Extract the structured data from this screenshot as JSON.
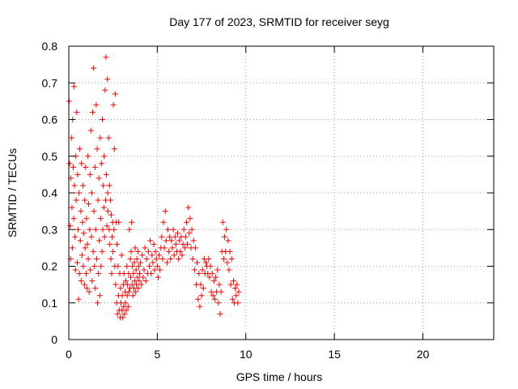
{
  "chart_data": {
    "type": "scatter",
    "title": "Day 177 of 2023, SRMTID for receiver seyg",
    "xlabel": "GPS time / hours",
    "ylabel": "SRMTID / TECUs",
    "xlim": [
      0,
      24
    ],
    "ylim": [
      0,
      0.8
    ],
    "xticks": [
      0,
      5,
      10,
      15,
      20
    ],
    "yticks": [
      0,
      0.1,
      0.2,
      0.3,
      0.4,
      0.5,
      0.6,
      0.7,
      0.8
    ],
    "grid": true,
    "marker": "+",
    "series": [
      {
        "name": "SRMTID",
        "color": "#ff0000",
        "points": [
          [
            0.02,
            0.65
          ],
          [
            0.05,
            0.48
          ],
          [
            0.08,
            0.31
          ],
          [
            0.1,
            0.22
          ],
          [
            0.12,
            0.44
          ],
          [
            0.15,
            0.55
          ],
          [
            0.18,
            0.36
          ],
          [
            0.2,
            0.25
          ],
          [
            0.22,
            0.6
          ],
          [
            0.25,
            0.47
          ],
          [
            0.28,
            0.33
          ],
          [
            0.3,
            0.69
          ],
          [
            0.32,
            0.42
          ],
          [
            0.35,
            0.28
          ],
          [
            0.38,
            0.19
          ],
          [
            0.4,
            0.5
          ],
          [
            0.42,
            0.38
          ],
          [
            0.45,
            0.62
          ],
          [
            0.48,
            0.21
          ],
          [
            0.5,
            0.45
          ],
          [
            0.52,
            0.3
          ],
          [
            0.55,
            0.11
          ],
          [
            0.58,
            0.4
          ],
          [
            0.6,
            0.18
          ],
          [
            0.62,
            0.52
          ],
          [
            0.65,
            0.27
          ],
          [
            0.68,
            0.35
          ],
          [
            0.7,
            0.16
          ],
          [
            0.72,
            0.48
          ],
          [
            0.75,
            0.23
          ],
          [
            0.78,
            0.32
          ],
          [
            0.8,
            0.42
          ],
          [
            0.82,
            0.2
          ],
          [
            0.85,
            0.29
          ],
          [
            0.88,
            0.15
          ],
          [
            0.9,
            0.38
          ],
          [
            0.92,
            0.25
          ],
          [
            0.95,
            0.47
          ],
          [
            0.98,
            0.18
          ],
          [
            1.0,
            0.33
          ],
          [
            1.02,
            0.14
          ],
          [
            1.05,
            0.26
          ],
          [
            1.08,
            0.5
          ],
          [
            1.1,
            0.22
          ],
          [
            1.12,
            0.37
          ],
          [
            1.15,
            0.13
          ],
          [
            1.18,
            0.3
          ],
          [
            1.2,
            0.45
          ],
          [
            1.22,
            0.19
          ],
          [
            1.25,
            0.57
          ],
          [
            1.28,
            0.28
          ],
          [
            1.3,
            0.4
          ],
          [
            1.32,
            0.16
          ],
          [
            1.35,
            0.62
          ],
          [
            1.38,
            0.24
          ],
          [
            1.4,
            0.74
          ],
          [
            1.42,
            0.35
          ],
          [
            1.45,
            0.2
          ],
          [
            1.48,
            0.47
          ],
          [
            1.5,
            0.14
          ],
          [
            1.52,
            0.3
          ],
          [
            1.55,
            0.64
          ],
          [
            1.58,
            0.22
          ],
          [
            1.6,
            0.52
          ],
          [
            1.62,
            0.1
          ],
          [
            1.65,
            0.38
          ],
          [
            1.68,
            0.18
          ],
          [
            1.7,
            0.44
          ],
          [
            1.72,
            0.27
          ],
          [
            1.75,
            0.12
          ],
          [
            1.78,
            0.55
          ],
          [
            1.8,
            0.33
          ],
          [
            1.82,
            0.2
          ],
          [
            1.85,
            0.48
          ],
          [
            1.88,
            0.24
          ],
          [
            1.9,
            0.6
          ],
          [
            1.92,
            0.3
          ],
          [
            1.95,
            0.42
          ],
          [
            1.98,
            0.36
          ],
          [
            2.0,
            0.5
          ],
          [
            2.02,
            0.28
          ],
          [
            2.05,
            0.68
          ],
          [
            2.08,
            0.38
          ],
          [
            2.1,
            0.77
          ],
          [
            2.12,
            0.45
          ],
          [
            2.15,
            0.31
          ],
          [
            2.18,
            0.71
          ],
          [
            2.2,
            0.4
          ],
          [
            2.22,
            0.35
          ],
          [
            2.25,
            0.55
          ],
          [
            2.28,
            0.3
          ],
          [
            2.3,
            0.42
          ],
          [
            2.32,
            0.26
          ],
          [
            2.35,
            0.38
          ],
          [
            2.38,
            0.22
          ],
          [
            2.4,
            0.34
          ],
          [
            2.42,
            0.18
          ],
          [
            2.45,
            0.28
          ],
          [
            2.48,
            0.32
          ],
          [
            2.5,
            0.24
          ],
          [
            2.52,
            0.64
          ],
          [
            2.55,
            0.3
          ],
          [
            2.58,
            0.52
          ],
          [
            2.6,
            0.2
          ],
          [
            2.62,
            0.67
          ],
          [
            2.65,
            0.15
          ],
          [
            2.68,
            0.32
          ],
          [
            2.7,
            0.1
          ],
          [
            2.72,
            0.26
          ],
          [
            2.75,
            0.07
          ],
          [
            2.78,
            0.2
          ],
          [
            2.8,
            0.12
          ],
          [
            2.82,
            0.32
          ],
          [
            2.85,
            0.08
          ],
          [
            2.88,
            0.18
          ],
          [
            2.9,
            0.06
          ],
          [
            2.92,
            0.14
          ],
          [
            2.95,
            0.1
          ],
          [
            2.98,
            0.23
          ],
          [
            3.0,
            0.08
          ],
          [
            3.02,
            0.12
          ],
          [
            3.05,
            0.06
          ],
          [
            3.08,
            0.15
          ],
          [
            3.1,
            0.09
          ],
          [
            3.12,
            0.18
          ],
          [
            3.15,
            0.07
          ],
          [
            3.18,
            0.13
          ],
          [
            3.2,
            0.1
          ],
          [
            3.22,
            0.16
          ],
          [
            3.25,
            0.08
          ],
          [
            3.28,
            0.2
          ],
          [
            3.3,
            0.12
          ],
          [
            3.32,
            0.15
          ],
          [
            3.35,
            0.09
          ],
          [
            3.38,
            0.18
          ],
          [
            3.4,
            0.13
          ],
          [
            3.42,
            0.3
          ],
          [
            3.45,
            0.14
          ],
          [
            3.48,
            0.22
          ],
          [
            3.5,
            0.17
          ],
          [
            3.52,
            0.24
          ],
          [
            3.55,
            0.32
          ],
          [
            3.58,
            0.15
          ],
          [
            3.6,
            0.2
          ],
          [
            3.62,
            0.12
          ],
          [
            3.65,
            0.18
          ],
          [
            3.68,
            0.14
          ],
          [
            3.7,
            0.21
          ],
          [
            3.72,
            0.16
          ],
          [
            3.75,
            0.25
          ],
          [
            3.78,
            0.13
          ],
          [
            3.8,
            0.19
          ],
          [
            3.82,
            0.15
          ],
          [
            3.85,
            0.22
          ],
          [
            3.88,
            0.17
          ],
          [
            3.9,
            0.24
          ],
          [
            3.92,
            0.14
          ],
          [
            3.95,
            0.2
          ],
          [
            3.98,
            0.16
          ],
          [
            4.0,
            0.18
          ],
          [
            4.05,
            0.21
          ],
          [
            4.1,
            0.15
          ],
          [
            4.15,
            0.23
          ],
          [
            4.2,
            0.17
          ],
          [
            4.25,
            0.19
          ],
          [
            4.3,
            0.25
          ],
          [
            4.35,
            0.16
          ],
          [
            4.4,
            0.22
          ],
          [
            4.45,
            0.18
          ],
          [
            4.5,
            0.24
          ],
          [
            4.55,
            0.2
          ],
          [
            4.6,
            0.27
          ],
          [
            4.65,
            0.18
          ],
          [
            4.7,
            0.23
          ],
          [
            4.75,
            0.21
          ],
          [
            4.8,
            0.26
          ],
          [
            4.85,
            0.19
          ],
          [
            4.9,
            0.24
          ],
          [
            4.95,
            0.22
          ],
          [
            5.0,
            0.2
          ],
          [
            5.05,
            0.17
          ],
          [
            5.1,
            0.23
          ],
          [
            5.15,
            0.19
          ],
          [
            5.2,
            0.25
          ],
          [
            5.25,
            0.28
          ],
          [
            5.3,
            0.22
          ],
          [
            5.35,
            0.32
          ],
          [
            5.4,
            0.25
          ],
          [
            5.45,
            0.35
          ],
          [
            5.5,
            0.27
          ],
          [
            5.55,
            0.21
          ],
          [
            5.6,
            0.3
          ],
          [
            5.65,
            0.24
          ],
          [
            5.7,
            0.28
          ],
          [
            5.75,
            0.22
          ],
          [
            5.8,
            0.27
          ],
          [
            5.85,
            0.25
          ],
          [
            5.9,
            0.3
          ],
          [
            5.95,
            0.23
          ],
          [
            6.0,
            0.28
          ],
          [
            6.05,
            0.26
          ],
          [
            6.1,
            0.24
          ],
          [
            6.15,
            0.29
          ],
          [
            6.2,
            0.22
          ],
          [
            6.25,
            0.27
          ],
          [
            6.3,
            0.24
          ],
          [
            6.35,
            0.28
          ],
          [
            6.4,
            0.23
          ],
          [
            6.45,
            0.26
          ],
          [
            6.5,
            0.3
          ],
          [
            6.55,
            0.25
          ],
          [
            6.6,
            0.28
          ],
          [
            6.65,
            0.32
          ],
          [
            6.7,
            0.26
          ],
          [
            6.75,
            0.36
          ],
          [
            6.8,
            0.29
          ],
          [
            6.85,
            0.33
          ],
          [
            6.9,
            0.25
          ],
          [
            6.95,
            0.3
          ],
          [
            7.0,
            0.22
          ],
          [
            7.05,
            0.27
          ],
          [
            7.1,
            0.19
          ],
          [
            7.15,
            0.25
          ],
          [
            7.2,
            0.15
          ],
          [
            7.25,
            0.21
          ],
          [
            7.3,
            0.11
          ],
          [
            7.35,
            0.18
          ],
          [
            7.4,
            0.09
          ],
          [
            7.45,
            0.15
          ],
          [
            7.5,
            0.12
          ],
          [
            7.55,
            0.19
          ],
          [
            7.6,
            0.14
          ],
          [
            7.65,
            0.22
          ],
          [
            7.7,
            0.18
          ],
          [
            7.75,
            0.21
          ],
          [
            7.8,
            0.2
          ],
          [
            7.85,
            0.18
          ],
          [
            7.9,
            0.22
          ],
          [
            7.95,
            0.17
          ],
          [
            8.0,
            0.2
          ],
          [
            8.05,
            0.13
          ],
          [
            8.1,
            0.18
          ],
          [
            8.15,
            0.12
          ],
          [
            8.2,
            0.16
          ],
          [
            8.25,
            0.11
          ],
          [
            8.3,
            0.17
          ],
          [
            8.35,
            0.13
          ],
          [
            8.4,
            0.19
          ],
          [
            8.45,
            0.1
          ],
          [
            8.5,
            0.15
          ],
          [
            8.55,
            0.07
          ],
          [
            8.6,
            0.13
          ],
          [
            8.65,
            0.24
          ],
          [
            8.7,
            0.32
          ],
          [
            8.75,
            0.22
          ],
          [
            8.8,
            0.28
          ],
          [
            8.85,
            0.24
          ],
          [
            8.9,
            0.3
          ],
          [
            8.95,
            0.21
          ],
          [
            9.0,
            0.27
          ],
          [
            9.05,
            0.19
          ],
          [
            9.1,
            0.24
          ],
          [
            9.15,
            0.15
          ],
          [
            9.2,
            0.22
          ],
          [
            9.25,
            0.11
          ],
          [
            9.3,
            0.16
          ],
          [
            9.35,
            0.1
          ],
          [
            9.4,
            0.14
          ],
          [
            9.45,
            0.12
          ],
          [
            9.5,
            0.15
          ],
          [
            9.55,
            0.1
          ],
          [
            9.6,
            0.13
          ]
        ]
      }
    ]
  }
}
